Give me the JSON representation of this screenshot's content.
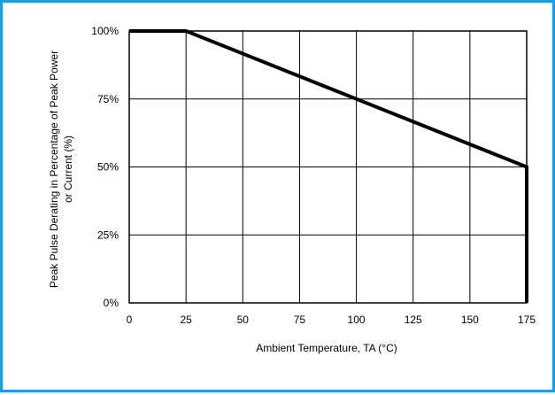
{
  "colors": {
    "frame_border": "#1a9bf0",
    "line": "#000000",
    "grid": "#000000"
  },
  "chart_data": {
    "type": "line",
    "title": "",
    "xlabel": "Ambient Temperature, TA (°C)",
    "ylabel_line1": "Peak Pulse Derating in Percentage of Peak Power",
    "ylabel_line2": "or Current (%)",
    "xlim": [
      0,
      175
    ],
    "ylim": [
      0,
      100
    ],
    "x_ticks": [
      0,
      25,
      50,
      75,
      100,
      125,
      150,
      175
    ],
    "x_tick_labels": [
      "0",
      "25",
      "50",
      "75",
      "100",
      "125",
      "150",
      "175"
    ],
    "y_ticks": [
      0,
      25,
      50,
      75,
      100
    ],
    "y_tick_labels": [
      "0%",
      "25%",
      "50%",
      "75%",
      "100%"
    ],
    "grid": true,
    "legend": "none",
    "series": [
      {
        "x": [
          0,
          25,
          175,
          175
        ],
        "y": [
          100,
          100,
          50,
          0
        ]
      }
    ]
  }
}
